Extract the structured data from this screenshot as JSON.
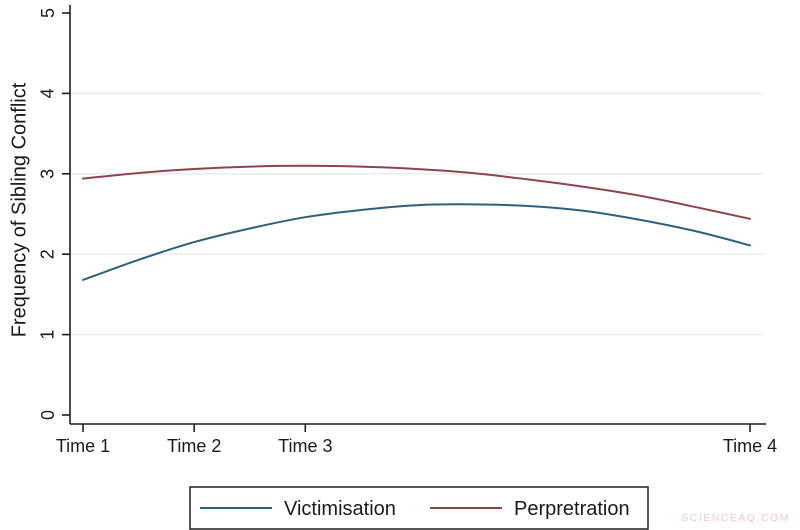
{
  "figure": {
    "watermark": "SCIENCEAQ.COM"
  },
  "chart_data": {
    "type": "line",
    "title": "",
    "xlabel": "",
    "ylabel": "Frequency of Sibling Conflict",
    "ylim": [
      0,
      5
    ],
    "xlim": [
      0.9,
      7.08
    ],
    "y_ticks": [
      0,
      1,
      2,
      3,
      4,
      5
    ],
    "grid_values": [
      1,
      2,
      3,
      4
    ],
    "grid": "horizontal, very light gray-green lines",
    "legend_position": "bottom-center-boxed",
    "x_ticks": [
      {
        "x": 1,
        "label": "Time 1"
      },
      {
        "x": 2,
        "label": "Time 2"
      },
      {
        "x": 3,
        "label": "Time 3"
      },
      {
        "x": 7,
        "label": "Time 4"
      }
    ],
    "series": [
      {
        "name": "Victimisation",
        "color": "#2f617c",
        "x": [
          1.0,
          1.5,
          2.0,
          2.5,
          3.0,
          3.5,
          4.0,
          4.5,
          5.0,
          5.5,
          6.0,
          6.5,
          7.0
        ],
        "values": [
          1.68,
          1.93,
          2.15,
          2.32,
          2.46,
          2.55,
          2.61,
          2.62,
          2.6,
          2.54,
          2.43,
          2.29,
          2.11
        ]
      },
      {
        "name": "Perpretration",
        "color": "#8e4549",
        "x": [
          1.0,
          1.5,
          2.0,
          2.5,
          3.0,
          3.5,
          4.0,
          4.5,
          5.0,
          5.5,
          6.0,
          6.5,
          7.0
        ],
        "values": [
          2.94,
          3.01,
          3.06,
          3.09,
          3.1,
          3.09,
          3.06,
          3.01,
          2.93,
          2.84,
          2.73,
          2.59,
          2.44
        ]
      }
    ]
  }
}
